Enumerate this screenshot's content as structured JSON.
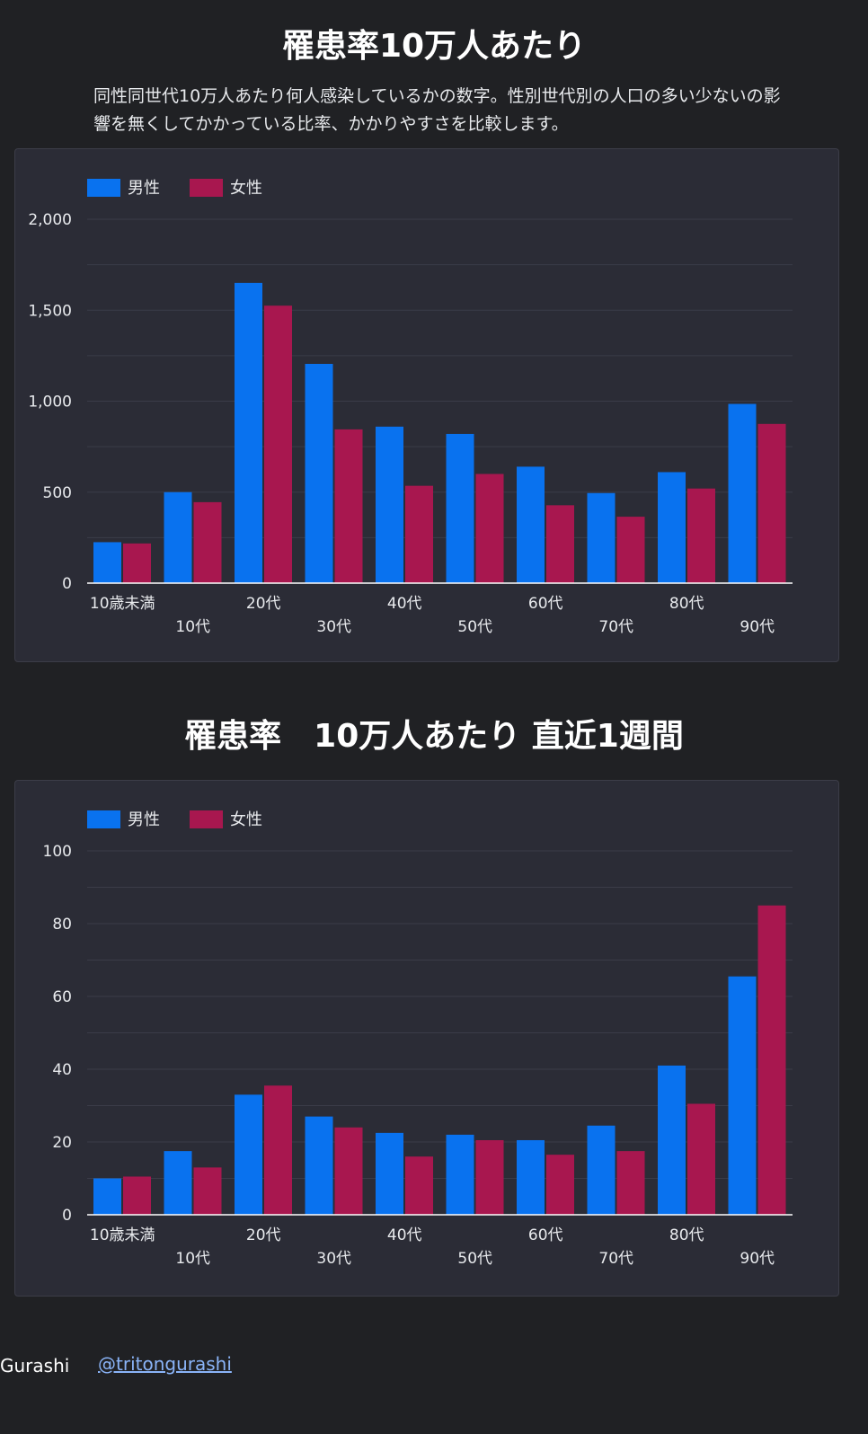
{
  "sections": [
    {
      "title": "罹患率10万人あたり",
      "description": "同性同世代10万人あたり何人感染しているかの数字。性別世代別の人口の多い少ないの影響を無くしてかかっている比率、かかりやすさを比較します。"
    },
    {
      "title": "罹患率　10万人あたり 直近1週間"
    }
  ],
  "colors": {
    "male": "#0972ef",
    "female": "#a8174f",
    "background": "#202124",
    "card": "#2b2c36",
    "gridline": "#3b3c48",
    "axis": "#ffffff"
  },
  "chart_data": [
    {
      "type": "bar",
      "categories": [
        "10歳未満",
        "10代",
        "20代",
        "30代",
        "40代",
        "50代",
        "60代",
        "70代",
        "80代",
        "90代"
      ],
      "series": [
        {
          "name": "男性",
          "values": [
            225,
            500,
            1650,
            1205,
            860,
            820,
            640,
            495,
            610,
            985
          ]
        },
        {
          "name": "女性",
          "values": [
            218,
            445,
            1525,
            845,
            535,
            600,
            428,
            365,
            520,
            875
          ]
        }
      ],
      "yticks": [
        "2,000",
        "1,500",
        "1,000",
        "500",
        "0"
      ],
      "ylim": [
        0,
        2000
      ],
      "ytick_values": [
        0,
        500,
        1000,
        1500,
        2000
      ],
      "minor_gridlines": true,
      "legend_position": "top-left"
    },
    {
      "type": "bar",
      "categories": [
        "10歳未満",
        "10代",
        "20代",
        "30代",
        "40代",
        "50代",
        "60代",
        "70代",
        "80代",
        "90代"
      ],
      "series": [
        {
          "name": "男性",
          "values": [
            10,
            17.5,
            33,
            27,
            22.5,
            22,
            20.5,
            24.5,
            41,
            65.5
          ]
        },
        {
          "name": "女性",
          "values": [
            10.5,
            13,
            35.5,
            24,
            16,
            20.5,
            16.5,
            17.5,
            30.5,
            85
          ]
        }
      ],
      "yticks": [
        "100",
        "80",
        "60",
        "40",
        "20",
        "0"
      ],
      "ylim": [
        0,
        100
      ],
      "ytick_values": [
        0,
        20,
        40,
        60,
        80,
        100
      ],
      "minor_gridlines": true,
      "legend_position": "top-left"
    }
  ],
  "footer": {
    "author": "Gurashi",
    "link_text": "@tritongurashi"
  }
}
